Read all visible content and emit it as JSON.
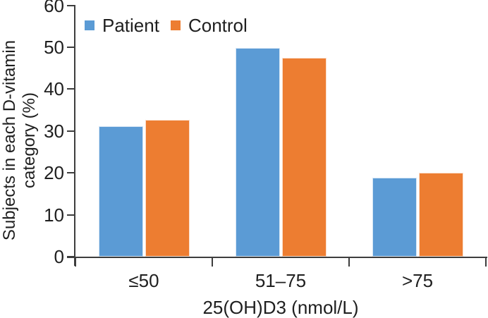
{
  "figure": {
    "y_axis_label_line1": "Subjects in each D-vitamin",
    "y_axis_label_line2": "category (%)",
    "x_axis_label": "25(OH)D3 (nmol/L)"
  },
  "colors": {
    "patient": "#5b9bd5",
    "control": "#ed7d31",
    "axis": "#3d3d3d",
    "text": "#1f1f1f"
  },
  "chart_data": {
    "type": "bar",
    "title": "",
    "categories": [
      "≤50",
      "51–75",
      ">75"
    ],
    "series": [
      {
        "name": "Patient",
        "color": "#5b9bd5",
        "values": [
          31.2,
          49.8,
          18.9
        ]
      },
      {
        "name": "Control",
        "color": "#ed7d31",
        "values": [
          32.7,
          47.4,
          20.0
        ]
      }
    ],
    "xlabel": "25(OH)D3 (nmol/L)",
    "ylabel": "Subjects in each D-vitamin category (%)",
    "ylim": [
      0,
      60
    ],
    "yticks": [
      0,
      10,
      20,
      30,
      40,
      50,
      60
    ],
    "grid": false,
    "legend_position": "top-left-inside"
  }
}
